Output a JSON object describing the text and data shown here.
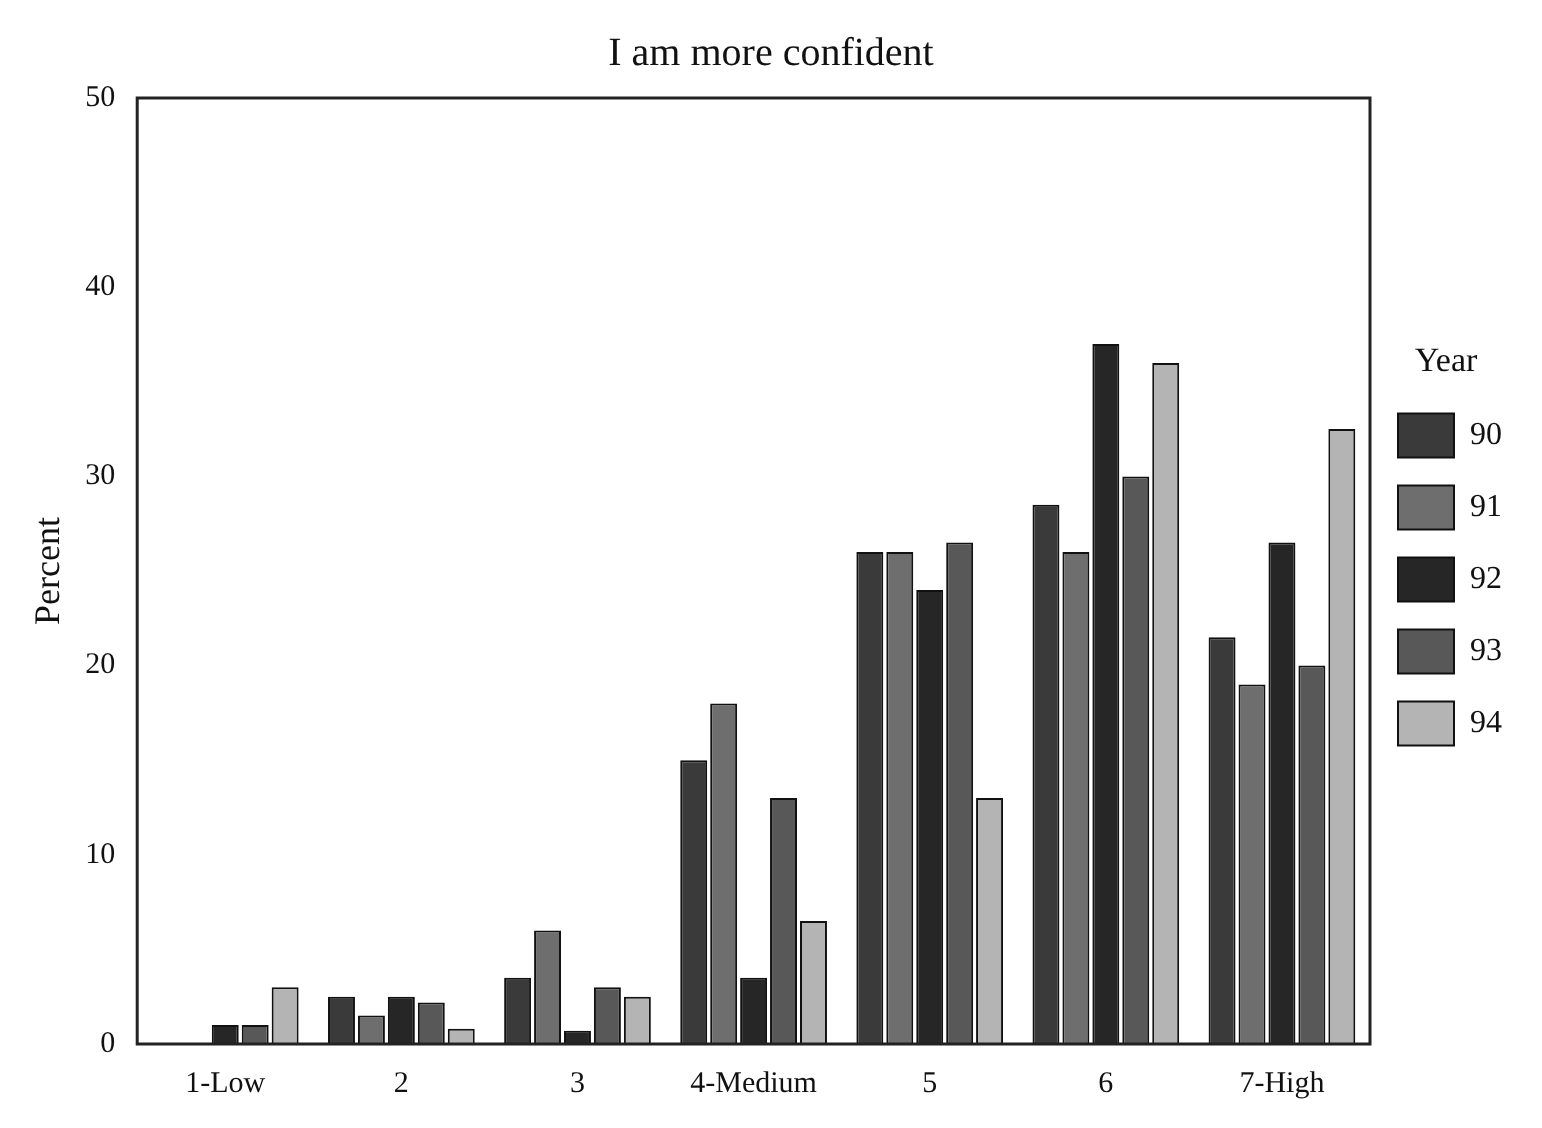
{
  "chart_data": {
    "type": "bar",
    "title": "I am more confident",
    "ylabel": "Percent",
    "legend_title": "Year",
    "categories": [
      "1-Low",
      "2",
      "3",
      "4-Medium",
      "5",
      "6",
      "7-High"
    ],
    "series": [
      {
        "name": "90",
        "color": "#3a3a3a",
        "values": [
          0,
          2.5,
          3.5,
          15,
          26,
          28.5,
          21.5
        ]
      },
      {
        "name": "91",
        "color": "#6e6e6e",
        "values": [
          0,
          1.5,
          6,
          18,
          26,
          26,
          19
        ]
      },
      {
        "name": "92",
        "color": "#262626",
        "values": [
          1,
          2.5,
          0.7,
          3.5,
          24,
          37,
          26.5
        ]
      },
      {
        "name": "93",
        "color": "#585858",
        "values": [
          1,
          2.2,
          3,
          13,
          26.5,
          30,
          20
        ]
      },
      {
        "name": "94",
        "color": "#b4b4b4",
        "values": [
          3,
          0.8,
          2.5,
          6.5,
          13,
          36,
          32.5
        ]
      }
    ],
    "ylim": [
      0,
      50
    ],
    "yticks": [
      0,
      10,
      20,
      30,
      40,
      50
    ],
    "grid": false,
    "legend": "right"
  }
}
